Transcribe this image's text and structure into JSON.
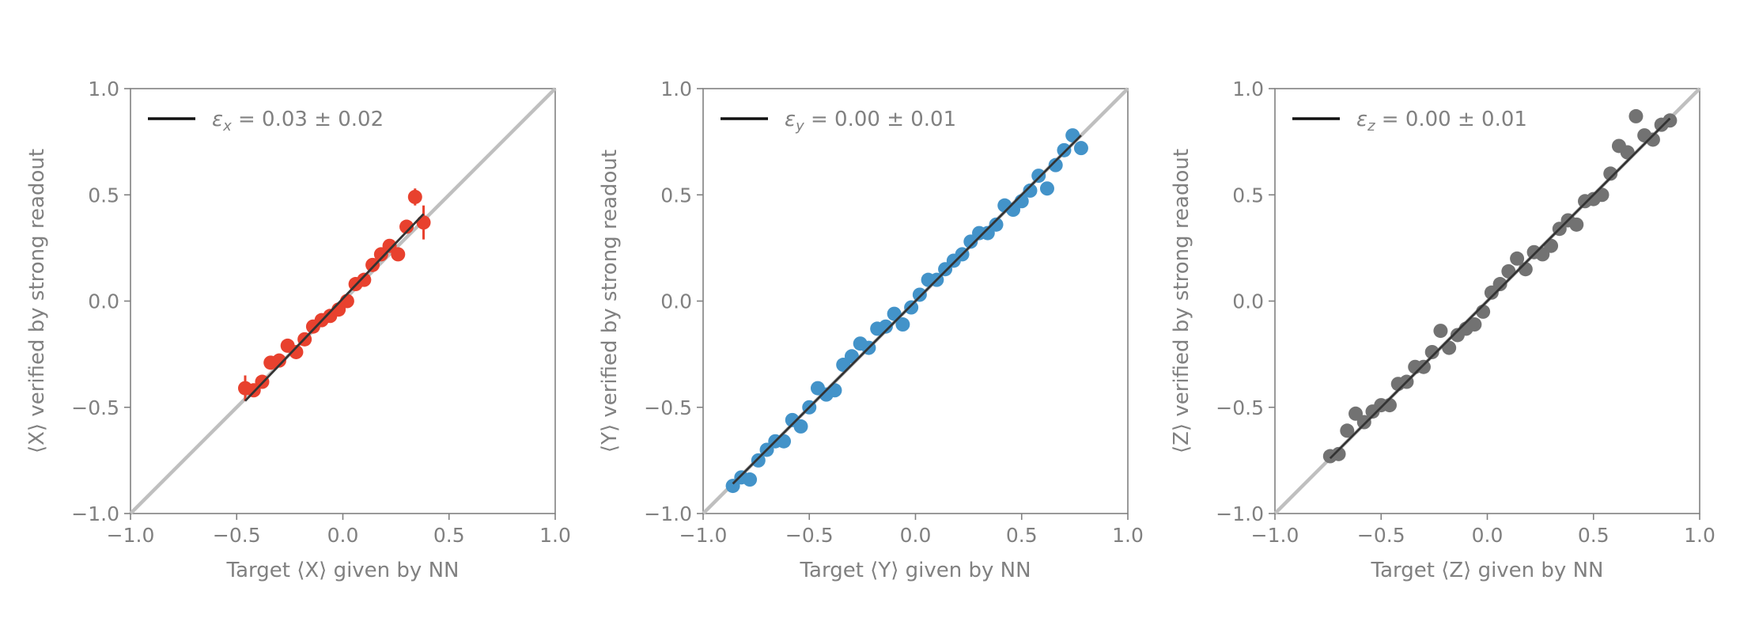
{
  "chart_data": [
    {
      "type": "scatter",
      "title": "",
      "xlabel": "Target ⟨X⟩ given by NN",
      "ylabel": "⟨X⟩ verified by strong readout",
      "xlim": [
        -1.0,
        1.0
      ],
      "ylim": [
        -1.0,
        1.0
      ],
      "xticks": [
        "−1.0",
        "−0.5",
        "0.0",
        "0.5",
        "1.0"
      ],
      "yticks": [
        "−1.0",
        "−0.5",
        "0.0",
        "0.5",
        "1.0"
      ],
      "legend_symbol": "ε",
      "legend_subscript": "x",
      "legend_rest": " = 0.03 ± 0.02",
      "legend_position": "top-left",
      "color": "#e8412e",
      "series": [
        {
          "x": [
            -0.46,
            -0.42,
            -0.38,
            -0.34,
            -0.3,
            -0.26,
            -0.22,
            -0.18,
            -0.14,
            -0.1,
            -0.06,
            -0.02,
            0.02,
            0.06,
            0.1,
            0.14,
            0.18,
            0.22,
            0.26,
            0.3,
            0.34,
            0.38
          ],
          "y": [
            -0.41,
            -0.42,
            -0.38,
            -0.29,
            -0.28,
            -0.21,
            -0.24,
            -0.18,
            -0.12,
            -0.09,
            -0.07,
            -0.04,
            0.0,
            0.08,
            0.1,
            0.17,
            0.22,
            0.26,
            0.22,
            0.35,
            0.49,
            0.37
          ],
          "yerr": [
            0.06,
            0.03,
            0.03,
            0.03,
            0.02,
            0.02,
            0.02,
            0.02,
            0.02,
            0.02,
            0.02,
            0.02,
            0.02,
            0.02,
            0.02,
            0.02,
            0.02,
            0.02,
            0.02,
            0.03,
            0.04,
            0.08
          ]
        }
      ],
      "fit": {
        "x": [
          -0.46,
          0.38
        ],
        "y": [
          -0.47,
          0.41
        ]
      },
      "reference_line": "y = x"
    },
    {
      "type": "scatter",
      "title": "",
      "xlabel": "Target ⟨Y⟩ given by NN",
      "ylabel": "⟨Y⟩ verified by strong readout",
      "xlim": [
        -1.0,
        1.0
      ],
      "ylim": [
        -1.0,
        1.0
      ],
      "xticks": [
        "−1.0",
        "−0.5",
        "0.0",
        "0.5",
        "1.0"
      ],
      "yticks": [
        "−1.0",
        "−0.5",
        "0.0",
        "0.5",
        "1.0"
      ],
      "legend_symbol": "ε",
      "legend_subscript": "y",
      "legend_rest": " = 0.00 ± 0.01",
      "legend_position": "top-left",
      "color": "#4393c9",
      "series": [
        {
          "x": [
            -0.86,
            -0.82,
            -0.78,
            -0.74,
            -0.7,
            -0.66,
            -0.62,
            -0.58,
            -0.54,
            -0.5,
            -0.46,
            -0.42,
            -0.38,
            -0.34,
            -0.3,
            -0.26,
            -0.22,
            -0.18,
            -0.14,
            -0.1,
            -0.06,
            -0.02,
            0.02,
            0.06,
            0.1,
            0.14,
            0.18,
            0.22,
            0.26,
            0.3,
            0.34,
            0.38,
            0.42,
            0.46,
            0.5,
            0.54,
            0.58,
            0.62,
            0.66,
            0.7,
            0.74,
            0.78
          ],
          "y": [
            -0.87,
            -0.83,
            -0.84,
            -0.75,
            -0.7,
            -0.66,
            -0.66,
            -0.56,
            -0.59,
            -0.5,
            -0.41,
            -0.44,
            -0.42,
            -0.3,
            -0.26,
            -0.2,
            -0.22,
            -0.13,
            -0.12,
            -0.06,
            -0.11,
            -0.03,
            0.03,
            0.1,
            0.1,
            0.15,
            0.19,
            0.22,
            0.28,
            0.32,
            0.32,
            0.36,
            0.45,
            0.43,
            0.47,
            0.52,
            0.59,
            0.53,
            0.64,
            0.71,
            0.78,
            0.72
          ]
        }
      ],
      "fit": {
        "x": [
          -0.86,
          0.78
        ],
        "y": [
          -0.86,
          0.78
        ]
      },
      "reference_line": "y = x"
    },
    {
      "type": "scatter",
      "title": "",
      "xlabel": "Target ⟨Z⟩ given by NN",
      "ylabel": "⟨Z⟩ verified by strong readout",
      "xlim": [
        -1.0,
        1.0
      ],
      "ylim": [
        -1.0,
        1.0
      ],
      "xticks": [
        "−1.0",
        "−0.5",
        "0.0",
        "0.5",
        "1.0"
      ],
      "yticks": [
        "−1.0",
        "−0.5",
        "0.0",
        "0.5",
        "1.0"
      ],
      "legend_symbol": "ε",
      "legend_subscript": "z",
      "legend_rest": " = 0.00 ± 0.01",
      "legend_position": "top-left",
      "color": "#727272",
      "series": [
        {
          "x": [
            -0.74,
            -0.7,
            -0.66,
            -0.62,
            -0.58,
            -0.54,
            -0.5,
            -0.46,
            -0.42,
            -0.38,
            -0.34,
            -0.3,
            -0.26,
            -0.22,
            -0.18,
            -0.14,
            -0.1,
            -0.06,
            -0.02,
            0.02,
            0.06,
            0.1,
            0.14,
            0.18,
            0.22,
            0.26,
            0.3,
            0.34,
            0.38,
            0.42,
            0.46,
            0.5,
            0.54,
            0.58,
            0.62,
            0.66,
            0.7,
            0.74,
            0.78,
            0.82,
            0.86
          ],
          "y": [
            -0.73,
            -0.72,
            -0.61,
            -0.53,
            -0.57,
            -0.52,
            -0.49,
            -0.49,
            -0.39,
            -0.38,
            -0.31,
            -0.31,
            -0.24,
            -0.14,
            -0.22,
            -0.16,
            -0.13,
            -0.11,
            -0.05,
            0.04,
            0.08,
            0.14,
            0.2,
            0.15,
            0.23,
            0.22,
            0.26,
            0.34,
            0.38,
            0.36,
            0.47,
            0.48,
            0.5,
            0.6,
            0.73,
            0.7,
            0.87,
            0.78,
            0.76,
            0.83,
            0.85
          ]
        }
      ],
      "fit": {
        "x": [
          -0.74,
          0.86
        ],
        "y": [
          -0.74,
          0.86
        ]
      },
      "reference_line": "y = x"
    }
  ]
}
